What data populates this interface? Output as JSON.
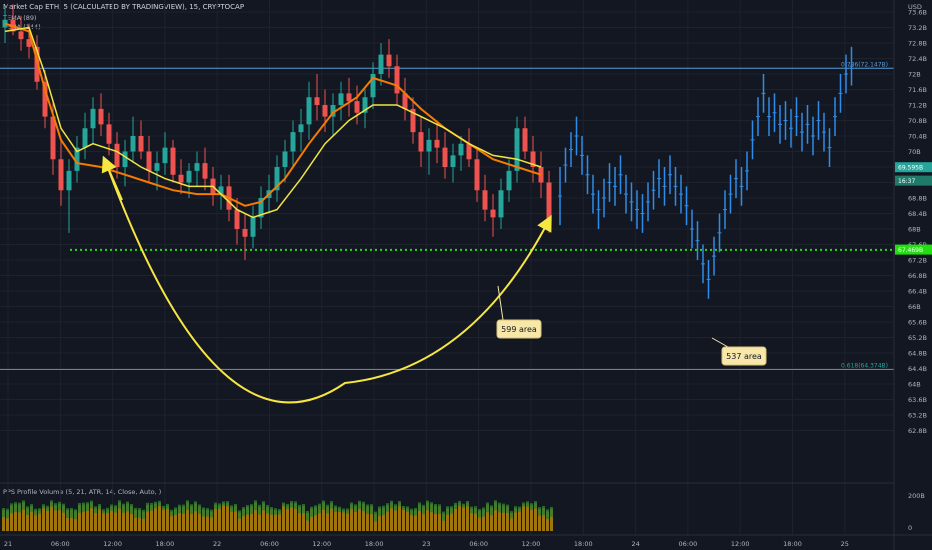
{
  "header": {
    "title": "Market Cap ETH, 5 (CALCULATED BY TRADINGVIEW), 15, CRYPTOCAP",
    "indicators": [
      "TEMA (89)",
      "TEMA (144)"
    ],
    "volume_label": "PPS Profile Volume (5, 21, ATR, 14, Close, Auto, )"
  },
  "currency": "USD",
  "colors": {
    "background": "#131722",
    "candle_up": "#26a69a",
    "candle_down": "#ef5350",
    "forecast": "#2f8ce8",
    "tema89": "#f0e442",
    "tema144": "#f57c00",
    "support": "#22e010",
    "curve": "#f5e642",
    "fib_top": "#5b9bd5",
    "fib_bottom": "#26a69a",
    "current_price": "#26a69a"
  },
  "chart_data": {
    "type": "candlestick",
    "price_ticks": [
      "73.6B",
      "73.2B",
      "72.8B",
      "72.4B",
      "72B",
      "71.6B",
      "71.2B",
      "70.8B",
      "70.4B",
      "70B",
      "69.6B",
      "69.2B",
      "68.8B",
      "68.4B",
      "68B",
      "67.6B",
      "67.2B",
      "66.8B",
      "66.4B",
      "66B",
      "65.6B",
      "65.2B",
      "64.8B",
      "64.4B",
      "64B",
      "63.6B",
      "63.2B",
      "62.8B"
    ],
    "time_ticks": [
      "21",
      "06:00",
      "12:00",
      "18:00",
      "22",
      "06:00",
      "12:00",
      "18:00",
      "23",
      "06:00",
      "12:00",
      "18:00",
      "24",
      "06:00",
      "12:00",
      "18:00",
      "25"
    ],
    "volume_ticks": [
      "200B",
      "0"
    ],
    "fib_levels": [
      {
        "label": "0.786(72.147B)",
        "value": 72.147
      },
      {
        "label": "0.618(64.374B)",
        "value": 64.374
      }
    ],
    "support": {
      "value": 67.46
    },
    "price_tags": [
      {
        "label": "69.595B",
        "value": 69.595,
        "style": "current"
      },
      {
        "label": "16:37",
        "value": 69.3,
        "style": "time"
      },
      {
        "label": "67.469B",
        "value": 67.469,
        "style": "support"
      }
    ],
    "annotations": [
      {
        "text": "599 area",
        "time": 63,
        "price": 67.4
      },
      {
        "text": "537 area",
        "time": 91,
        "price": 66.2
      }
    ],
    "ohlc": [
      [
        73.2,
        73.7,
        72.8,
        73.4
      ],
      [
        73.4,
        73.8,
        73.0,
        73.1
      ],
      [
        73.1,
        73.5,
        72.6,
        72.9
      ],
      [
        72.9,
        73.3,
        72.4,
        72.7
      ],
      [
        72.7,
        73.0,
        71.6,
        71.8
      ],
      [
        71.8,
        72.1,
        70.6,
        70.9
      ],
      [
        70.9,
        71.3,
        69.4,
        69.8
      ],
      [
        69.8,
        70.3,
        68.6,
        69.0
      ],
      [
        69.0,
        69.8,
        67.9,
        69.5
      ],
      [
        69.5,
        70.4,
        69.2,
        70.1
      ],
      [
        70.1,
        71.0,
        69.8,
        70.6
      ],
      [
        70.6,
        71.4,
        70.2,
        71.1
      ],
      [
        71.1,
        71.5,
        70.4,
        70.7
      ],
      [
        70.7,
        71.0,
        69.9,
        70.2
      ],
      [
        70.2,
        70.5,
        69.3,
        69.6
      ],
      [
        69.6,
        70.3,
        69.1,
        70.0
      ],
      [
        70.0,
        70.9,
        69.7,
        70.4
      ],
      [
        70.4,
        70.8,
        69.8,
        70.0
      ],
      [
        70.0,
        70.4,
        69.2,
        69.5
      ],
      [
        69.5,
        70.0,
        69.0,
        69.7
      ],
      [
        69.7,
        70.5,
        69.4,
        70.1
      ],
      [
        70.1,
        70.3,
        69.2,
        69.4
      ],
      [
        69.4,
        69.8,
        68.9,
        69.2
      ],
      [
        69.2,
        69.7,
        68.8,
        69.5
      ],
      [
        69.5,
        70.0,
        69.1,
        69.7
      ],
      [
        69.7,
        70.1,
        69.0,
        69.3
      ],
      [
        69.3,
        69.6,
        68.6,
        68.9
      ],
      [
        68.9,
        69.4,
        68.5,
        69.1
      ],
      [
        69.1,
        69.4,
        68.2,
        68.5
      ],
      [
        68.5,
        68.8,
        67.6,
        68.0
      ],
      [
        68.0,
        68.4,
        67.2,
        67.8
      ],
      [
        67.8,
        68.6,
        67.5,
        68.3
      ],
      [
        68.3,
        69.1,
        68.0,
        68.8
      ],
      [
        68.8,
        69.4,
        68.4,
        69.0
      ],
      [
        69.0,
        69.9,
        68.7,
        69.6
      ],
      [
        69.6,
        70.3,
        69.2,
        70.0
      ],
      [
        70.0,
        70.8,
        69.6,
        70.5
      ],
      [
        70.5,
        71.1,
        70.0,
        70.7
      ],
      [
        70.7,
        71.8,
        70.3,
        71.4
      ],
      [
        71.4,
        72.0,
        70.8,
        71.2
      ],
      [
        71.2,
        71.6,
        70.5,
        70.9
      ],
      [
        70.9,
        71.5,
        70.4,
        71.2
      ],
      [
        71.2,
        71.8,
        70.8,
        71.5
      ],
      [
        71.5,
        71.9,
        70.9,
        71.3
      ],
      [
        71.3,
        71.7,
        70.7,
        71.0
      ],
      [
        71.0,
        71.6,
        70.6,
        71.4
      ],
      [
        71.4,
        72.3,
        71.1,
        72.0
      ],
      [
        72.0,
        72.8,
        71.7,
        72.5
      ],
      [
        72.5,
        72.9,
        71.9,
        72.2
      ],
      [
        72.2,
        72.5,
        71.2,
        71.5
      ],
      [
        71.5,
        71.9,
        70.8,
        71.1
      ],
      [
        71.1,
        71.4,
        70.2,
        70.5
      ],
      [
        70.5,
        70.9,
        69.6,
        70.0
      ],
      [
        70.0,
        70.6,
        69.4,
        70.3
      ],
      [
        70.3,
        70.8,
        69.7,
        70.1
      ],
      [
        70.1,
        70.5,
        69.3,
        69.6
      ],
      [
        69.6,
        70.2,
        69.2,
        69.9
      ],
      [
        69.9,
        70.4,
        69.5,
        70.2
      ],
      [
        70.2,
        70.6,
        69.6,
        69.8
      ],
      [
        69.8,
        70.1,
        68.7,
        69.0
      ],
      [
        69.0,
        69.4,
        68.2,
        68.5
      ],
      [
        68.5,
        68.9,
        67.8,
        68.3
      ],
      [
        68.3,
        69.3,
        68.0,
        69.0
      ],
      [
        69.0,
        69.8,
        68.7,
        69.5
      ],
      [
        69.5,
        70.9,
        69.2,
        70.6
      ],
      [
        70.6,
        70.9,
        69.8,
        70.0
      ],
      [
        70.0,
        70.4,
        69.2,
        69.6
      ],
      [
        69.6,
        70.0,
        68.8,
        69.2
      ],
      [
        69.2,
        69.5,
        67.9,
        68.1
      ]
    ],
    "forecast": [
      [
        68.1,
        69.6
      ],
      [
        69.2,
        70.1
      ],
      [
        69.6,
        70.5
      ],
      [
        69.9,
        70.9
      ],
      [
        69.4,
        70.4
      ],
      [
        68.9,
        69.9
      ],
      [
        68.4,
        69.4
      ],
      [
        68.0,
        69.0
      ],
      [
        68.3,
        69.3
      ],
      [
        68.7,
        69.7
      ],
      [
        68.6,
        69.6
      ],
      [
        68.9,
        69.9
      ],
      [
        68.4,
        69.4
      ],
      [
        68.2,
        69.2
      ],
      [
        68.0,
        69.0
      ],
      [
        67.9,
        68.9
      ],
      [
        68.2,
        69.2
      ],
      [
        68.5,
        69.5
      ],
      [
        68.8,
        69.8
      ],
      [
        68.6,
        69.6
      ],
      [
        68.9,
        69.9
      ],
      [
        68.6,
        69.6
      ],
      [
        68.4,
        69.4
      ],
      [
        68.1,
        69.1
      ],
      [
        67.5,
        68.5
      ],
      [
        67.2,
        68.2
      ],
      [
        66.6,
        67.6
      ],
      [
        66.2,
        67.2
      ],
      [
        66.8,
        67.8
      ],
      [
        67.4,
        68.4
      ],
      [
        68.0,
        69.0
      ],
      [
        68.4,
        69.4
      ],
      [
        68.8,
        69.8
      ],
      [
        68.6,
        69.6
      ],
      [
        69.0,
        70.0
      ],
      [
        69.8,
        70.8
      ],
      [
        70.4,
        71.4
      ],
      [
        71.0,
        72.0
      ],
      [
        70.4,
        71.4
      ],
      [
        70.5,
        71.5
      ],
      [
        70.2,
        71.2
      ],
      [
        70.3,
        71.3
      ],
      [
        70.1,
        71.1
      ],
      [
        70.4,
        71.4
      ],
      [
        70.0,
        71.0
      ],
      [
        70.2,
        71.2
      ],
      [
        69.9,
        70.9
      ],
      [
        70.3,
        71.3
      ],
      [
        70.0,
        71.0
      ],
      [
        69.6,
        70.6
      ],
      [
        70.4,
        71.4
      ],
      [
        71.0,
        72.0
      ],
      [
        71.5,
        72.5
      ],
      [
        71.7,
        72.7
      ]
    ],
    "tema89": [
      [
        0,
        73.1
      ],
      [
        3,
        73.2
      ],
      [
        5,
        72.0
      ],
      [
        7,
        70.6
      ],
      [
        9,
        70.0
      ],
      [
        11,
        70.2
      ],
      [
        14,
        70.0
      ],
      [
        17,
        69.6
      ],
      [
        20,
        69.3
      ],
      [
        23,
        69.1
      ],
      [
        26,
        69.1
      ],
      [
        29,
        68.5
      ],
      [
        31,
        68.3
      ],
      [
        34,
        68.5
      ],
      [
        37,
        69.3
      ],
      [
        40,
        70.2
      ],
      [
        43,
        70.8
      ],
      [
        46,
        71.2
      ],
      [
        49,
        71.2
      ],
      [
        52,
        70.9
      ],
      [
        55,
        70.6
      ],
      [
        58,
        70.2
      ],
      [
        61,
        69.9
      ],
      [
        64,
        69.8
      ],
      [
        67,
        69.6
      ]
    ],
    "tema144": [
      [
        0,
        73.3
      ],
      [
        3,
        73.1
      ],
      [
        5,
        71.6
      ],
      [
        7,
        70.3
      ],
      [
        9,
        69.7
      ],
      [
        12,
        69.6
      ],
      [
        15,
        69.4
      ],
      [
        18,
        69.2
      ],
      [
        21,
        69.0
      ],
      [
        24,
        68.9
      ],
      [
        27,
        68.9
      ],
      [
        30,
        68.6
      ],
      [
        32,
        68.7
      ],
      [
        35,
        69.3
      ],
      [
        38,
        70.2
      ],
      [
        41,
        71.0
      ],
      [
        44,
        71.4
      ],
      [
        46,
        71.9
      ],
      [
        49,
        71.7
      ],
      [
        52,
        71.1
      ],
      [
        55,
        70.6
      ],
      [
        58,
        70.2
      ],
      [
        61,
        69.8
      ],
      [
        64,
        69.6
      ],
      [
        67,
        69.4
      ]
    ],
    "volume": "histogram"
  }
}
